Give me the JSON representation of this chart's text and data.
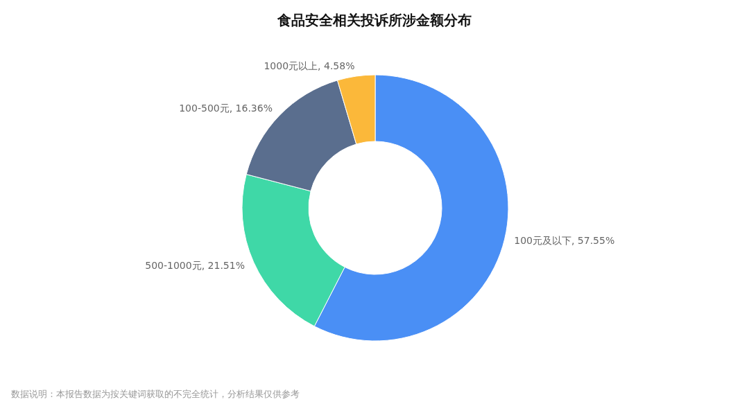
{
  "chart_data": {
    "type": "donut",
    "title": "食品安全相关投诉所涉金额分布",
    "categories": [
      "100元及以下",
      "500-1000元",
      "100-500元",
      "1000元以上"
    ],
    "values": [
      57.55,
      21.51,
      16.36,
      4.58
    ],
    "colors": [
      "#4a8ff5",
      "#3fd8a7",
      "#5a6e8e",
      "#fbb83a"
    ],
    "value_labels": [
      "57.55%",
      "21.51%",
      "16.36%",
      "4.58%"
    ],
    "legend": false,
    "annotations": [
      "数据说明：本报告数据为按关键词获取的不完全统计，分析结果仅供参考"
    ]
  }
}
